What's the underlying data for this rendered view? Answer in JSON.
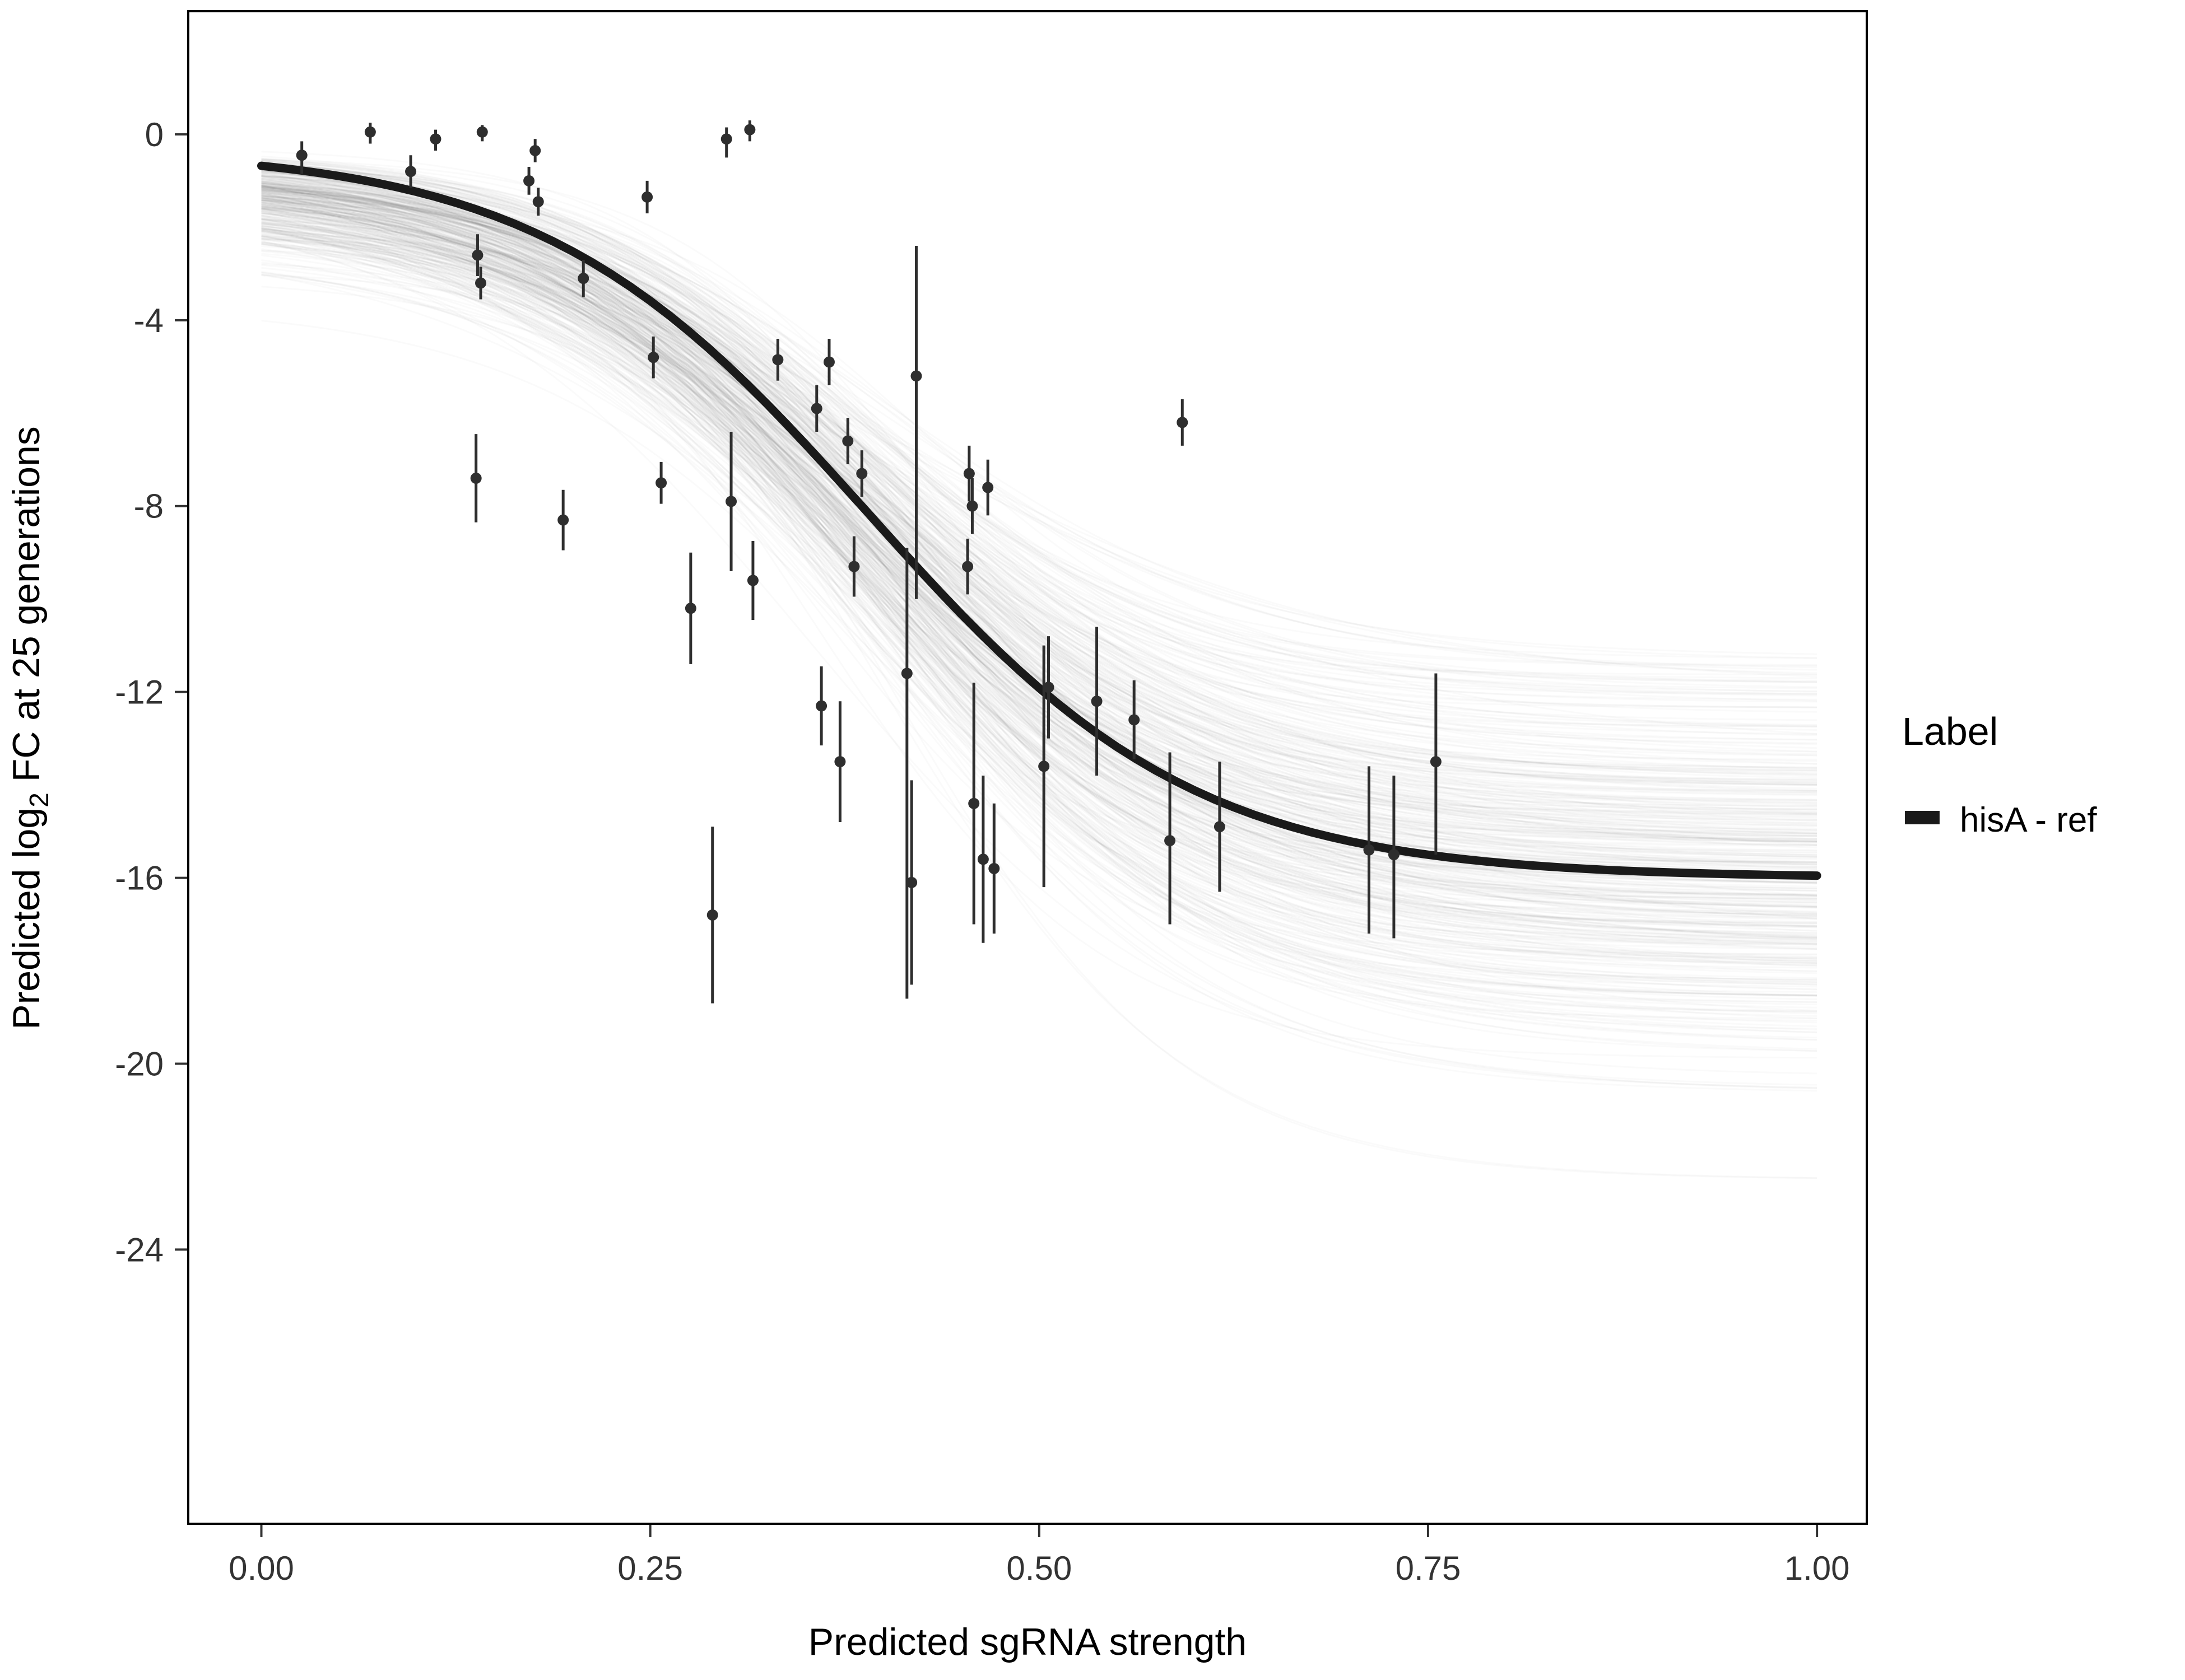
{
  "chart_data": {
    "type": "line",
    "title": "",
    "xlabel": "Predicted sgRNA strength",
    "ylabel": "Predicted log2 FC at 25 generations",
    "ylabel_parts": {
      "pre": "Predicted  log",
      "sub": "2",
      "post": " FC at 25 generations"
    },
    "x_ticks": [
      "0.00",
      "0.25",
      "0.50",
      "0.75",
      "1.00"
    ],
    "x_tick_values": [
      0,
      0.25,
      0.5,
      0.75,
      1.0
    ],
    "y_ticks": [
      "0",
      "-4",
      "-8",
      "-12",
      "-16",
      "-20",
      "-24"
    ],
    "y_tick_values": [
      0,
      -4,
      -8,
      -12,
      -16,
      -20,
      -24
    ],
    "xlim": [
      -0.047,
      1.032
    ],
    "ylim": [
      -29.9,
      2.65
    ],
    "grid": false,
    "background": "#ffffff",
    "legend": {
      "title": "Label",
      "position": "right",
      "entries": [
        {
          "label": "hisA - ref",
          "color": "#1a1a1a"
        }
      ]
    },
    "fit_curve": {
      "name": "hisA - ref",
      "model": "logistic",
      "top": -0.3,
      "bottom": -16.0,
      "midpoint": 0.39,
      "steepness": 9.5,
      "color": "#1a1a1a",
      "width": 15
    },
    "posterior_band": {
      "draws": 400,
      "color": "#000000",
      "alpha": 0.02,
      "line_width": 3,
      "top_mean": -0.25,
      "top_spread": 1.0,
      "bottom_mean": -16.0,
      "bottom_sd": 2.1,
      "midpoint_mean": 0.39,
      "midpoint_sd": 0.02,
      "steepness_mean": 9.5,
      "steepness_sd": 1.2
    },
    "point_color": "#2e2e2e",
    "points": [
      {
        "x": 0.026,
        "y": -0.45,
        "lo": -0.85,
        "hi": -0.15
      },
      {
        "x": 0.07,
        "y": 0.05,
        "lo": -0.2,
        "hi": 0.25
      },
      {
        "x": 0.096,
        "y": -0.8,
        "lo": -1.15,
        "hi": -0.45
      },
      {
        "x": 0.112,
        "y": -0.1,
        "lo": -0.35,
        "hi": 0.1
      },
      {
        "x": 0.142,
        "y": 0.05,
        "lo": -0.15,
        "hi": 0.2
      },
      {
        "x": 0.139,
        "y": -2.6,
        "lo": -3.05,
        "hi": -2.15
      },
      {
        "x": 0.141,
        "y": -3.2,
        "lo": -3.55,
        "hi": -2.85
      },
      {
        "x": 0.138,
        "y": -7.4,
        "lo": -8.35,
        "hi": -6.45
      },
      {
        "x": 0.176,
        "y": -0.35,
        "lo": -0.6,
        "hi": -0.1
      },
      {
        "x": 0.172,
        "y": -1.0,
        "lo": -1.3,
        "hi": -0.7
      },
      {
        "x": 0.178,
        "y": -1.45,
        "lo": -1.75,
        "hi": -1.15
      },
      {
        "x": 0.194,
        "y": -8.3,
        "lo": -8.95,
        "hi": -7.65
      },
      {
        "x": 0.207,
        "y": -3.1,
        "lo": -3.5,
        "hi": -2.7
      },
      {
        "x": 0.248,
        "y": -1.35,
        "lo": -1.7,
        "hi": -1.0
      },
      {
        "x": 0.252,
        "y": -4.8,
        "lo": -5.25,
        "hi": -4.35
      },
      {
        "x": 0.257,
        "y": -7.5,
        "lo": -7.95,
        "hi": -7.05
      },
      {
        "x": 0.276,
        "y": -10.2,
        "lo": -11.4,
        "hi": -9.0
      },
      {
        "x": 0.299,
        "y": -0.1,
        "lo": -0.5,
        "hi": 0.15
      },
      {
        "x": 0.302,
        "y": -7.9,
        "lo": -9.4,
        "hi": -6.4
      },
      {
        "x": 0.29,
        "y": -16.8,
        "lo": -18.7,
        "hi": -14.9
      },
      {
        "x": 0.314,
        "y": 0.1,
        "lo": -0.15,
        "hi": 0.3
      },
      {
        "x": 0.316,
        "y": -9.6,
        "lo": -10.45,
        "hi": -8.75
      },
      {
        "x": 0.332,
        "y": -4.85,
        "lo": -5.3,
        "hi": -4.4
      },
      {
        "x": 0.357,
        "y": -5.9,
        "lo": -6.4,
        "hi": -5.4
      },
      {
        "x": 0.36,
        "y": -12.3,
        "lo": -13.15,
        "hi": -11.45
      },
      {
        "x": 0.365,
        "y": -4.9,
        "lo": -5.4,
        "hi": -4.4
      },
      {
        "x": 0.372,
        "y": -13.5,
        "lo": -14.8,
        "hi": -12.2
      },
      {
        "x": 0.377,
        "y": -6.6,
        "lo": -7.1,
        "hi": -6.1
      },
      {
        "x": 0.381,
        "y": -9.3,
        "lo": -9.95,
        "hi": -8.65
      },
      {
        "x": 0.386,
        "y": -7.3,
        "lo": -7.8,
        "hi": -6.8
      },
      {
        "x": 0.421,
        "y": -5.2,
        "lo": -10.0,
        "hi": -2.4
      },
      {
        "x": 0.415,
        "y": -11.6,
        "lo": -18.6,
        "hi": -8.9
      },
      {
        "x": 0.418,
        "y": -16.1,
        "lo": -18.3,
        "hi": -13.9
      },
      {
        "x": 0.455,
        "y": -7.3,
        "lo": -7.9,
        "hi": -6.7
      },
      {
        "x": 0.457,
        "y": -8.0,
        "lo": -8.6,
        "hi": -7.4
      },
      {
        "x": 0.454,
        "y": -9.3,
        "lo": -9.9,
        "hi": -8.7
      },
      {
        "x": 0.458,
        "y": -14.4,
        "lo": -17.0,
        "hi": -11.8
      },
      {
        "x": 0.467,
        "y": -7.6,
        "lo": -8.2,
        "hi": -7.0
      },
      {
        "x": 0.464,
        "y": -15.6,
        "lo": -17.4,
        "hi": -13.8
      },
      {
        "x": 0.471,
        "y": -15.8,
        "lo": -17.2,
        "hi": -14.4
      },
      {
        "x": 0.503,
        "y": -13.6,
        "lo": -16.2,
        "hi": -11.0
      },
      {
        "x": 0.506,
        "y": -11.9,
        "lo": -13.0,
        "hi": -10.8
      },
      {
        "x": 0.537,
        "y": -12.2,
        "lo": -13.8,
        "hi": -10.6
      },
      {
        "x": 0.561,
        "y": -12.6,
        "lo": -13.45,
        "hi": -11.75
      },
      {
        "x": 0.592,
        "y": -6.2,
        "lo": -6.7,
        "hi": -5.7
      },
      {
        "x": 0.584,
        "y": -15.2,
        "lo": -17.0,
        "hi": -13.3
      },
      {
        "x": 0.616,
        "y": -14.9,
        "lo": -16.3,
        "hi": -13.5
      },
      {
        "x": 0.712,
        "y": -15.4,
        "lo": -17.2,
        "hi": -13.6
      },
      {
        "x": 0.728,
        "y": -15.5,
        "lo": -17.3,
        "hi": -13.8
      },
      {
        "x": 0.755,
        "y": -13.5,
        "lo": -15.5,
        "hi": -11.6
      }
    ]
  }
}
